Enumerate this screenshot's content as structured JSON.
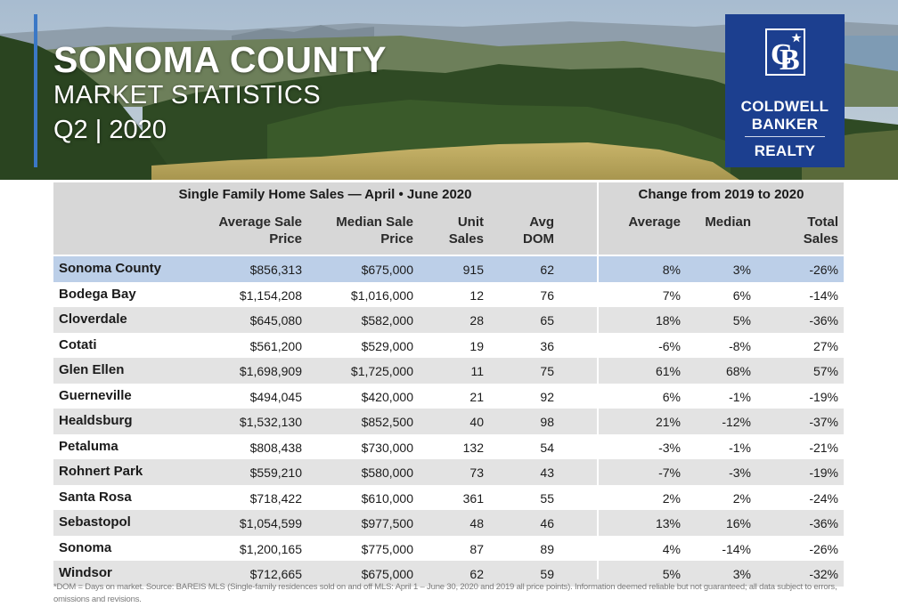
{
  "header": {
    "title": "SONOMA COUNTY",
    "subtitle": "MARKET STATISTICS",
    "period": "Q2 | 2020"
  },
  "logo": {
    "mark": "CB",
    "line1": "COLDWELL",
    "line2": "BANKER",
    "line3": "REALTY"
  },
  "table": {
    "group_left": "Single Family Home Sales — April • June 2020",
    "group_right": "Change from 2019 to 2020",
    "columns": {
      "avg_price": [
        "Average Sale",
        "Price"
      ],
      "median_price": [
        "Median Sale",
        "Price"
      ],
      "unit_sales": [
        "Unit",
        "Sales"
      ],
      "avg_dom": [
        "Avg",
        "DOM"
      ],
      "chg_avg": [
        "Average"
      ],
      "chg_median": [
        "Median"
      ],
      "chg_total": [
        "Total",
        "Sales"
      ]
    },
    "rows": [
      {
        "name": "Sonoma County",
        "avg": "$856,313",
        "median": "$675,000",
        "units": "915",
        "dom": "62",
        "chg_avg": "8%",
        "chg_median": "3%",
        "chg_total": "-26%"
      },
      {
        "name": "Bodega Bay",
        "avg": "$1,154,208",
        "median": "$1,016,000",
        "units": "12",
        "dom": "76",
        "chg_avg": "7%",
        "chg_median": "6%",
        "chg_total": "-14%"
      },
      {
        "name": "Cloverdale",
        "avg": "$645,080",
        "median": "$582,000",
        "units": "28",
        "dom": "65",
        "chg_avg": "18%",
        "chg_median": "5%",
        "chg_total": "-36%"
      },
      {
        "name": "Cotati",
        "avg": "$561,200",
        "median": "$529,000",
        "units": "19",
        "dom": "36",
        "chg_avg": "-6%",
        "chg_median": "-8%",
        "chg_total": "27%"
      },
      {
        "name": "Glen Ellen",
        "avg": "$1,698,909",
        "median": "$1,725,000",
        "units": "11",
        "dom": "75",
        "chg_avg": "61%",
        "chg_median": "68%",
        "chg_total": "57%"
      },
      {
        "name": "Guerneville",
        "avg": "$494,045",
        "median": "$420,000",
        "units": "21",
        "dom": "92",
        "chg_avg": "6%",
        "chg_median": "-1%",
        "chg_total": "-19%"
      },
      {
        "name": "Healdsburg",
        "avg": "$1,532,130",
        "median": "$852,500",
        "units": "40",
        "dom": "98",
        "chg_avg": "21%",
        "chg_median": "-12%",
        "chg_total": "-37%"
      },
      {
        "name": "Petaluma",
        "avg": "$808,438",
        "median": "$730,000",
        "units": "132",
        "dom": "54",
        "chg_avg": "-3%",
        "chg_median": "-1%",
        "chg_total": "-21%"
      },
      {
        "name": "Rohnert Park",
        "avg": "$559,210",
        "median": "$580,000",
        "units": "73",
        "dom": "43",
        "chg_avg": "-7%",
        "chg_median": "-3%",
        "chg_total": "-19%"
      },
      {
        "name": "Santa Rosa",
        "avg": "$718,422",
        "median": "$610,000",
        "units": "361",
        "dom": "55",
        "chg_avg": "2%",
        "chg_median": "2%",
        "chg_total": "-24%"
      },
      {
        "name": "Sebastopol",
        "avg": "$1,054,599",
        "median": "$977,500",
        "units": "48",
        "dom": "46",
        "chg_avg": "13%",
        "chg_median": "16%",
        "chg_total": "-36%"
      },
      {
        "name": "Sonoma",
        "avg": "$1,200,165",
        "median": "$775,000",
        "units": "87",
        "dom": "89",
        "chg_avg": "4%",
        "chg_median": "-14%",
        "chg_total": "-26%"
      },
      {
        "name": "Windsor",
        "avg": "$712,665",
        "median": "$675,000",
        "units": "62",
        "dom": "59",
        "chg_avg": "5%",
        "chg_median": "3%",
        "chg_total": "-32%"
      }
    ]
  },
  "footnote": "*DOM = Days on market. Source: BAREIS MLS (Single-family residences sold on and off MLS: April 1 – June 30, 2020 and 2019 all price points). Information deemed reliable but not guaranteed; all data subject to errors, omissions and revisions.",
  "colors": {
    "brand_blue": "#1c3f8f",
    "accent_rule": "#3b78c6",
    "highlight_row": "#bccfe8",
    "header_gray": "#d7d7d7",
    "alt_row": "#e3e3e3"
  }
}
